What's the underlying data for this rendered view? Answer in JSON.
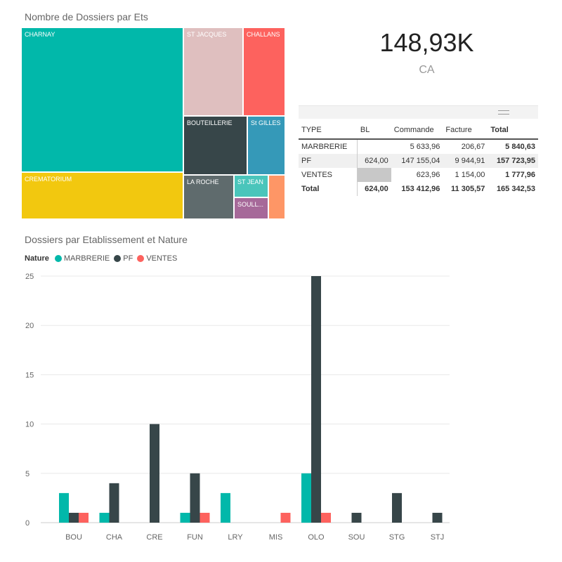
{
  "treemap": {
    "title": "Nombre de Dossiers par Ets",
    "tiles": [
      {
        "label": "CHARNAY",
        "color": "#01b8aa"
      },
      {
        "label": "CREMATORIUM",
        "color": "#f2c80f"
      },
      {
        "label": "ST JACQUES",
        "color": "#dfbfbf"
      },
      {
        "label": "CHALLANS",
        "color": "#fd625e"
      },
      {
        "label": "BOUTEILLERIE",
        "color": "#374649"
      },
      {
        "label": "St GILLES",
        "color": "#3599b8"
      },
      {
        "label": "LA ROCHE",
        "color": "#5f6b6d"
      },
      {
        "label": "ST JEAN",
        "color": "#4ac5bb"
      },
      {
        "label": "SOULL...",
        "color": "#a66999"
      },
      {
        "label": "",
        "color": "#fe9666"
      }
    ]
  },
  "kpi": {
    "value": "148,93K",
    "label": "CA"
  },
  "matrix": {
    "headers": [
      "TYPE",
      "BL",
      "Commande",
      "Facture",
      "Total"
    ],
    "rows": [
      [
        "MARBRERIE",
        "",
        "5 633,96",
        "206,67",
        "5 840,63"
      ],
      [
        "PF",
        "624,00",
        "147 155,04",
        "9 944,91",
        "157 723,95"
      ],
      [
        "VENTES",
        "",
        "623,96",
        "1 154,00",
        "1 777,96"
      ]
    ],
    "total": [
      "Total",
      "624,00",
      "153 412,96",
      "11 305,57",
      "165 342,53"
    ]
  },
  "chart_data": {
    "type": "bar",
    "title": "Dossiers par Etablissement et Nature",
    "legend_title": "Nature",
    "categories": [
      "BOU",
      "CHA",
      "CRE",
      "FUN",
      "LRY",
      "MIS",
      "OLO",
      "SOU",
      "STG",
      "STJ"
    ],
    "series": [
      {
        "name": "MARBRERIE",
        "color": "#01b8aa",
        "values": [
          3,
          1,
          0,
          1,
          3,
          0,
          5,
          0,
          0,
          0
        ]
      },
      {
        "name": "PF",
        "color": "#374649",
        "values": [
          1,
          4,
          10,
          5,
          0,
          0,
          25,
          1,
          3,
          1
        ]
      },
      {
        "name": "VENTES",
        "color": "#fd625e",
        "values": [
          1,
          0,
          0,
          1,
          0,
          1,
          1,
          0,
          0,
          0
        ]
      }
    ],
    "yticks": [
      "0",
      "5",
      "10",
      "15",
      "20",
      "25"
    ],
    "ylim": [
      0,
      25
    ],
    "grid": true,
    "legend_position": "top-left"
  }
}
